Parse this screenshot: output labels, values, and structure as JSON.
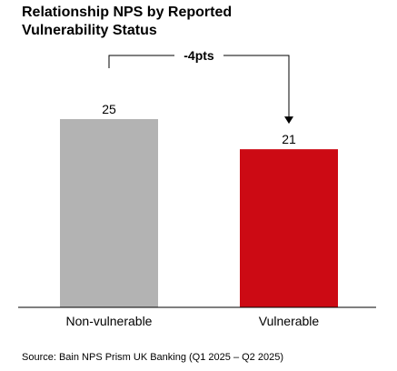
{
  "chart_data": {
    "type": "bar",
    "title": "Relationship NPS by Reported\nVulnerability Status",
    "categories": [
      "Non-vulnerable",
      "Vulnerable"
    ],
    "values": [
      25,
      21
    ],
    "ylim": [
      0,
      30
    ],
    "grid": false,
    "legend": "none",
    "annotation": {
      "label": "-4pts",
      "from_category": "Non-vulnerable",
      "to_category": "Vulnerable"
    },
    "colors": [
      "#b3b3b3",
      "#cc0a14"
    ],
    "source": "Source: Bain NPS Prism UK Banking (Q1 2025 – Q2 2025)"
  }
}
